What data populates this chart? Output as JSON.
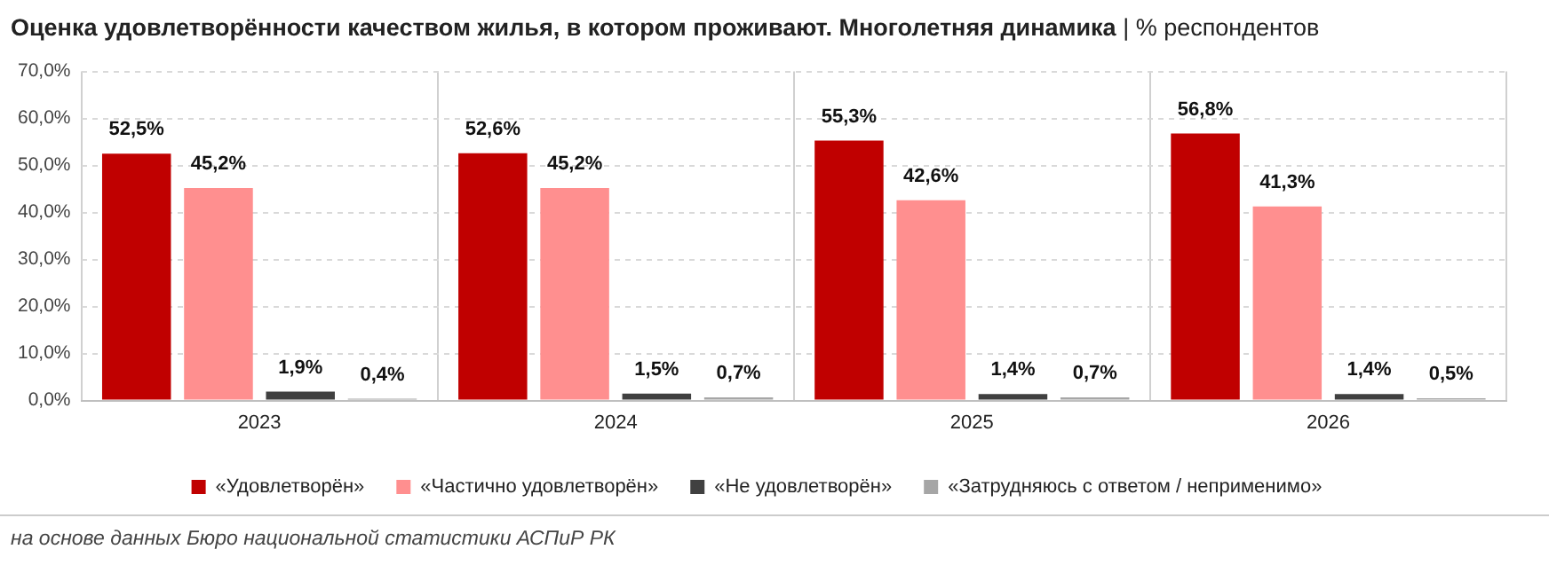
{
  "chart_data": {
    "type": "bar",
    "title": "Оценка удовлетворённости качеством жилья, в котором проживают. Многолетняя динамика",
    "subtitle": "| % респондентов",
    "categories": [
      "2023",
      "2024",
      "2025",
      "2026"
    ],
    "series": [
      {
        "name": "«Удовлетворён»",
        "color": "#c00000",
        "values": [
          52.5,
          52.6,
          55.3,
          56.8
        ],
        "value_labels": [
          "52,5%",
          "52,6%",
          "55,3%",
          "56,8%"
        ]
      },
      {
        "name": "«Частично удовлетворён»",
        "color": "#ff8f8f",
        "values": [
          45.2,
          45.2,
          42.6,
          41.3
        ],
        "value_labels": [
          "45,2%",
          "45,2%",
          "42,6%",
          "41,3%"
        ]
      },
      {
        "name": "«Не удовлетворён»",
        "color": "#404040",
        "values": [
          1.9,
          1.5,
          1.4,
          1.4
        ],
        "value_labels": [
          "1,9%",
          "1,5%",
          "1,4%",
          "1,4%"
        ]
      },
      {
        "name": "«Затрудняюсь с ответом / неприменимо»",
        "color": "#a6a6a6",
        "values": [
          0.4,
          0.7,
          0.7,
          0.5
        ],
        "value_labels": [
          "0,4%",
          "0,7%",
          "0,7%",
          "0,5%"
        ]
      }
    ],
    "ylim": [
      0,
      70
    ],
    "yticks": [
      {
        "value": 0,
        "label": "0,0%"
      },
      {
        "value": 10,
        "label": "10,0%"
      },
      {
        "value": 20,
        "label": "20,0%"
      },
      {
        "value": 30,
        "label": "30,0%"
      },
      {
        "value": 40,
        "label": "40,0%"
      },
      {
        "value": 50,
        "label": "50,0%"
      },
      {
        "value": 60,
        "label": "60,0%"
      },
      {
        "value": 70,
        "label": "70,0%"
      }
    ],
    "grid": true,
    "legend": "bottom",
    "annotations": [
      "на основе данных Бюро национальной статистики АСПиР РК"
    ]
  }
}
